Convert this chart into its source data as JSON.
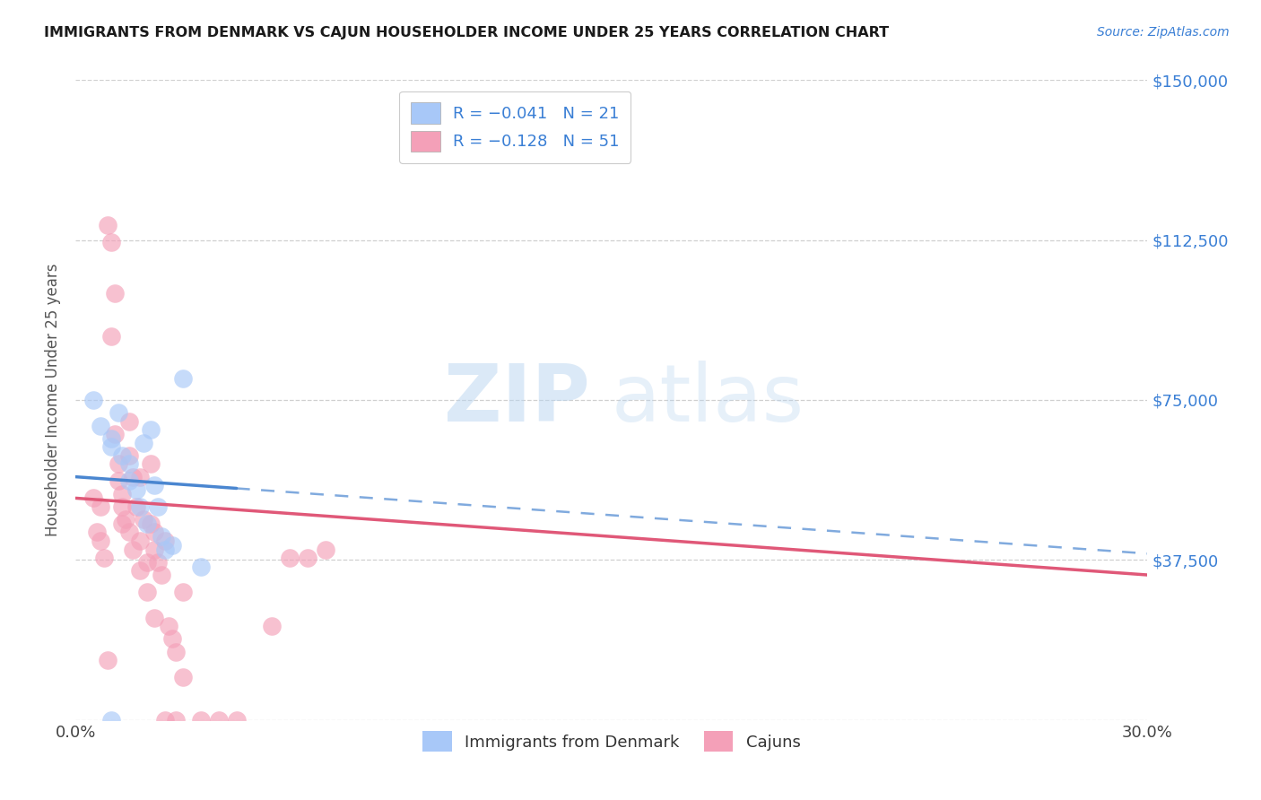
{
  "title": "IMMIGRANTS FROM DENMARK VS CAJUN HOUSEHOLDER INCOME UNDER 25 YEARS CORRELATION CHART",
  "source": "Source: ZipAtlas.com",
  "ylabel": "Householder Income Under 25 years",
  "xlim": [
    0.0,
    0.3
  ],
  "ylim": [
    0,
    150000
  ],
  "yticks": [
    0,
    37500,
    75000,
    112500,
    150000
  ],
  "ytick_labels": [
    "",
    "$37,500",
    "$75,000",
    "$112,500",
    "$150,000"
  ],
  "denmark_color": "#a8c8f8",
  "cajun_color": "#f4a0b8",
  "denmark_line_color": "#4a86d0",
  "cajun_line_color": "#e05878",
  "watermark_zip": "ZIP",
  "watermark_atlas": "atlas",
  "denmark_x": [
    0.005,
    0.007,
    0.01,
    0.01,
    0.012,
    0.013,
    0.015,
    0.015,
    0.017,
    0.018,
    0.019,
    0.02,
    0.021,
    0.022,
    0.023,
    0.024,
    0.025,
    0.027,
    0.03,
    0.035,
    0.01
  ],
  "denmark_y": [
    75000,
    69000,
    66000,
    64000,
    72000,
    62000,
    60000,
    56000,
    54000,
    50000,
    65000,
    46000,
    68000,
    55000,
    50000,
    43000,
    40000,
    41000,
    80000,
    36000,
    0
  ],
  "cajun_x": [
    0.005,
    0.006,
    0.007,
    0.007,
    0.009,
    0.01,
    0.011,
    0.012,
    0.013,
    0.013,
    0.015,
    0.015,
    0.016,
    0.017,
    0.018,
    0.018,
    0.019,
    0.02,
    0.021,
    0.021,
    0.022,
    0.022,
    0.023,
    0.024,
    0.025,
    0.026,
    0.027,
    0.028,
    0.01,
    0.011,
    0.012,
    0.013,
    0.014,
    0.015,
    0.016,
    0.018,
    0.02,
    0.022,
    0.025,
    0.028,
    0.03,
    0.055,
    0.06,
    0.065,
    0.07,
    0.008,
    0.009,
    0.03,
    0.035,
    0.04,
    0.045
  ],
  "cajun_y": [
    52000,
    44000,
    50000,
    42000,
    116000,
    112000,
    100000,
    56000,
    53000,
    46000,
    70000,
    62000,
    57000,
    50000,
    57000,
    42000,
    47000,
    37000,
    60000,
    46000,
    44000,
    40000,
    37000,
    34000,
    42000,
    22000,
    19000,
    16000,
    90000,
    67000,
    60000,
    50000,
    47000,
    44000,
    40000,
    35000,
    30000,
    24000,
    0,
    0,
    30000,
    22000,
    38000,
    38000,
    40000,
    38000,
    14000,
    10000,
    0,
    0,
    0
  ]
}
